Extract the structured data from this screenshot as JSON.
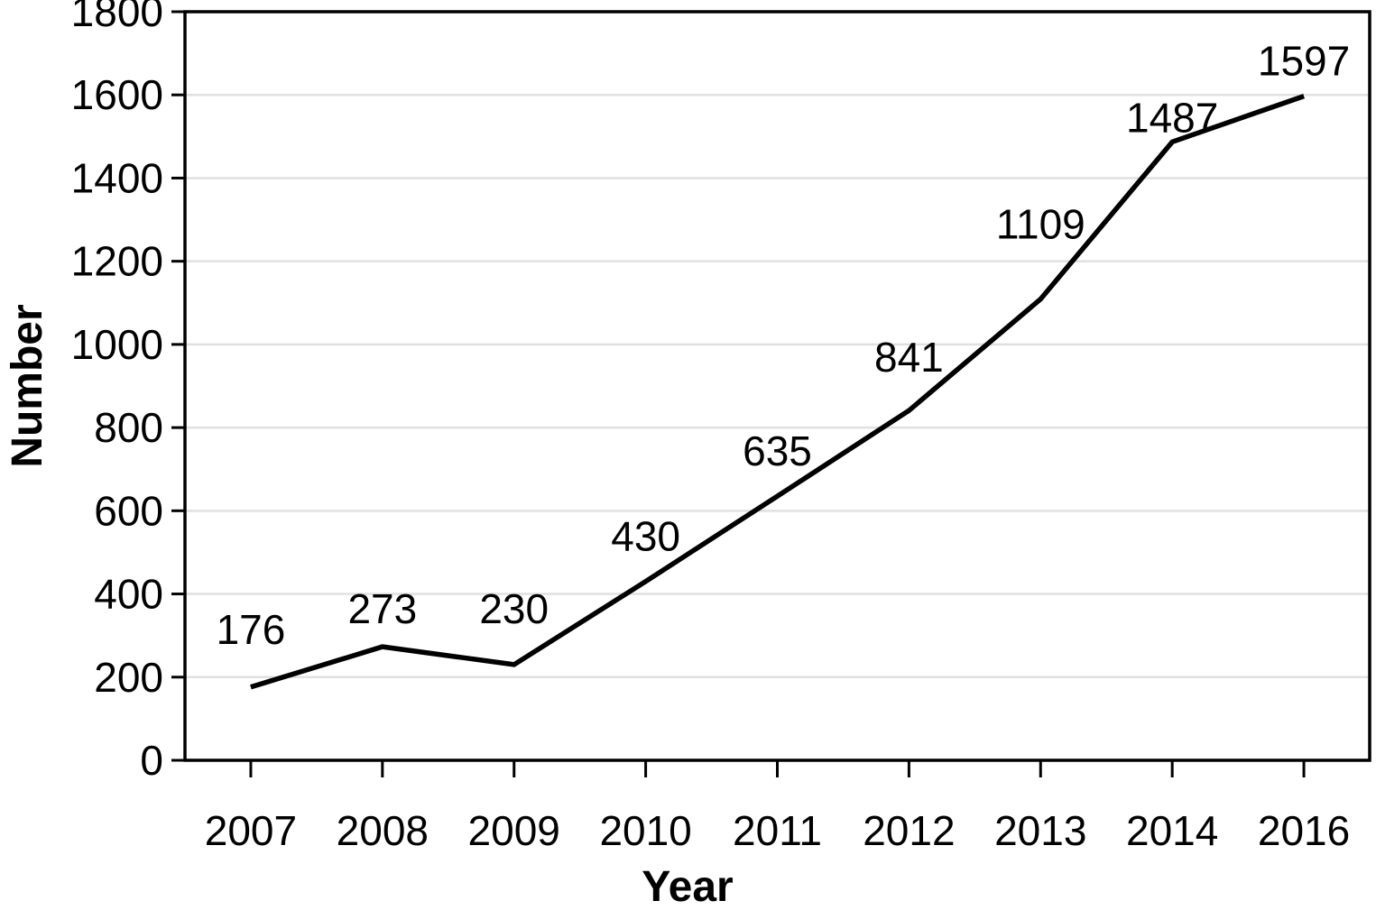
{
  "figure": {
    "background": "#ffffff"
  },
  "chart_data": {
    "type": "line",
    "title": "",
    "xlabel": "Year",
    "ylabel": "Number",
    "categories": [
      "2007",
      "2008",
      "2009",
      "2010",
      "2011",
      "2012",
      "2013",
      "2014",
      "2016"
    ],
    "series": [
      {
        "name": "Number",
        "values": [
          176,
          273,
          230,
          430,
          635,
          841,
          1109,
          1487,
          1597
        ]
      }
    ],
    "data_labels": [
      "176",
      "273",
      "230",
      "430",
      "635",
      "841",
      "1109",
      "1487",
      "1597"
    ],
    "ylim": [
      0,
      1800
    ],
    "yticks": [
      "0",
      "200",
      "400",
      "600",
      "800",
      "1000",
      "1200",
      "1400",
      "1600",
      "1800"
    ],
    "grid": "horizontal",
    "legend": "none",
    "colors": {
      "line": "#000000",
      "grid": "#e0e0e0",
      "axis": "#000000",
      "text": "#000000",
      "background": "#ffffff"
    }
  }
}
